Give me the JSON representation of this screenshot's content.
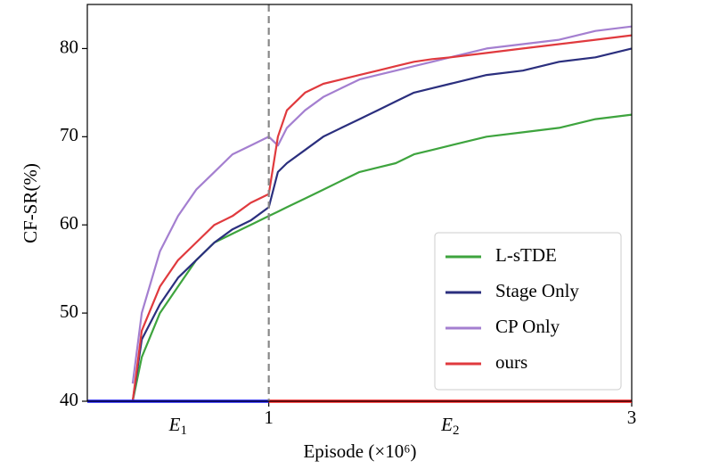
{
  "chart_data": {
    "type": "line",
    "xlabel": "Episode (×10⁶)",
    "ylabel": "CF-SR(%)",
    "x": [
      0.25,
      0.3,
      0.4,
      0.5,
      0.6,
      0.7,
      0.8,
      0.9,
      1.0,
      1.05,
      1.1,
      1.2,
      1.3,
      1.4,
      1.5,
      1.6,
      1.7,
      1.8,
      1.9,
      2.0,
      2.2,
      2.4,
      2.6,
      2.8,
      3.0
    ],
    "series": [
      {
        "name": "L-sTDE",
        "color": "#3ea43e",
        "values": [
          40,
          45,
          50,
          53,
          56,
          58,
          59,
          60,
          61,
          61.5,
          62,
          63,
          64,
          65,
          66,
          66.5,
          67,
          68,
          68.5,
          69,
          70,
          70.5,
          71,
          72,
          72.5
        ]
      },
      {
        "name": "Stage Only",
        "color": "#2b2f7e",
        "values": [
          40,
          47,
          51,
          54,
          56,
          58,
          59.5,
          60.5,
          62,
          66,
          67,
          68.5,
          70,
          71,
          72,
          73,
          74,
          75,
          75.5,
          76,
          77,
          77.5,
          78.5,
          79,
          80
        ]
      },
      {
        "name": "CP Only",
        "color": "#a47fd0",
        "values": [
          42,
          50,
          57,
          61,
          64,
          66,
          68,
          69,
          70,
          69,
          71,
          73,
          74.5,
          75.5,
          76.5,
          77,
          77.5,
          78,
          78.5,
          79,
          80,
          80.5,
          81,
          82,
          82.5
        ]
      },
      {
        "name": "ours",
        "color": "#e03a3e",
        "values": [
          40,
          48,
          53,
          56,
          58,
          60,
          61,
          62.5,
          63.5,
          70,
          73,
          75,
          76,
          76.5,
          77,
          77.5,
          78,
          78.5,
          78.8,
          79,
          79.5,
          80,
          80.5,
          81,
          81.5
        ]
      }
    ],
    "xlim": [
      0,
      3
    ],
    "ylim": [
      40,
      85
    ],
    "xticks": [
      1,
      3
    ],
    "yticks": [
      40,
      50,
      60,
      70,
      80
    ],
    "vline": 1,
    "phases": [
      {
        "start": 0,
        "end": 1,
        "color": "#1a1aff"
      },
      {
        "start": 1,
        "end": 3,
        "color": "#ff1a1a"
      }
    ],
    "annotations": [
      {
        "text": "E",
        "subscript": "1",
        "x": 0.5
      },
      {
        "text": "E",
        "subscript": "2",
        "x": 2.0
      }
    ],
    "legend": "lower right",
    "grid": false
  }
}
